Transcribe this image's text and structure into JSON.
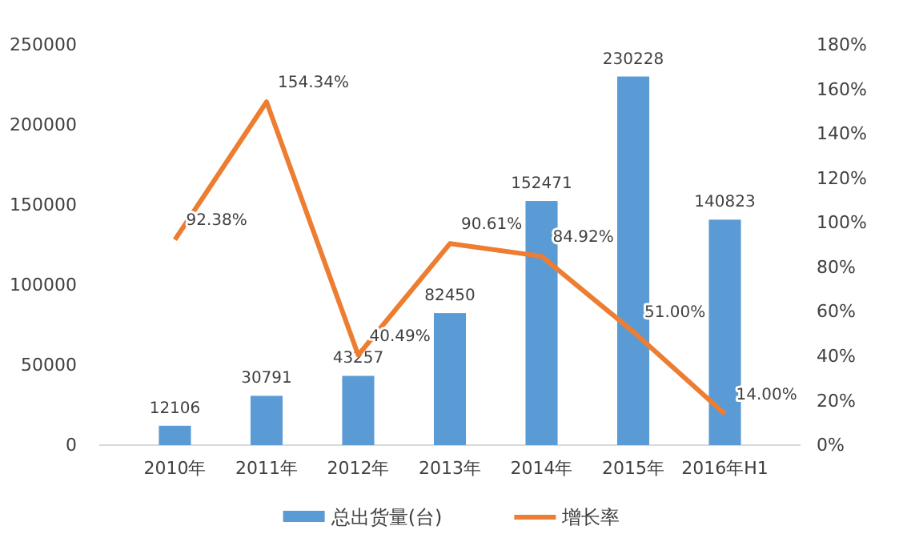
{
  "chart_data": {
    "type": "bar",
    "categories": [
      "2010年",
      "2011年",
      "2012年",
      "2013年",
      "2014年",
      "2015年",
      "2016年H1"
    ],
    "series": [
      {
        "name": "总出货量(台)",
        "color": "#5b9bd5",
        "values": [
          12106,
          30791,
          43257,
          82450,
          152471,
          230228,
          140823
        ]
      },
      {
        "name": "增长率",
        "type": "line",
        "axis": "y2",
        "color": "#ed7d31",
        "values": [
          92.38,
          154.34,
          40.49,
          90.61,
          84.92,
          51.0,
          14.0
        ],
        "value_labels": [
          "92.38%",
          "154.34%",
          "40.49%",
          "90.61%",
          "84.92%",
          "51.00%",
          "14.00%"
        ]
      }
    ],
    "data_labels": true,
    "ylim": [
      0,
      250000
    ],
    "yticks": [
      0,
      50000,
      100000,
      150000,
      200000,
      250000
    ],
    "y2lim": [
      0,
      180
    ],
    "y2ticks": [
      {
        "value": 0,
        "label": "0%"
      },
      {
        "value": 20,
        "label": "20%"
      },
      {
        "value": 40,
        "label": "40%"
      },
      {
        "value": 60,
        "label": "60%"
      },
      {
        "value": 80,
        "label": "80%"
      },
      {
        "value": 100,
        "label": "100%"
      },
      {
        "value": 120,
        "label": "120%"
      },
      {
        "value": 140,
        "label": "140%"
      },
      {
        "value": 160,
        "label": "160%"
      },
      {
        "value": 180,
        "label": "180%"
      }
    ],
    "grid": false,
    "legend": "bottom",
    "marker": "none"
  }
}
